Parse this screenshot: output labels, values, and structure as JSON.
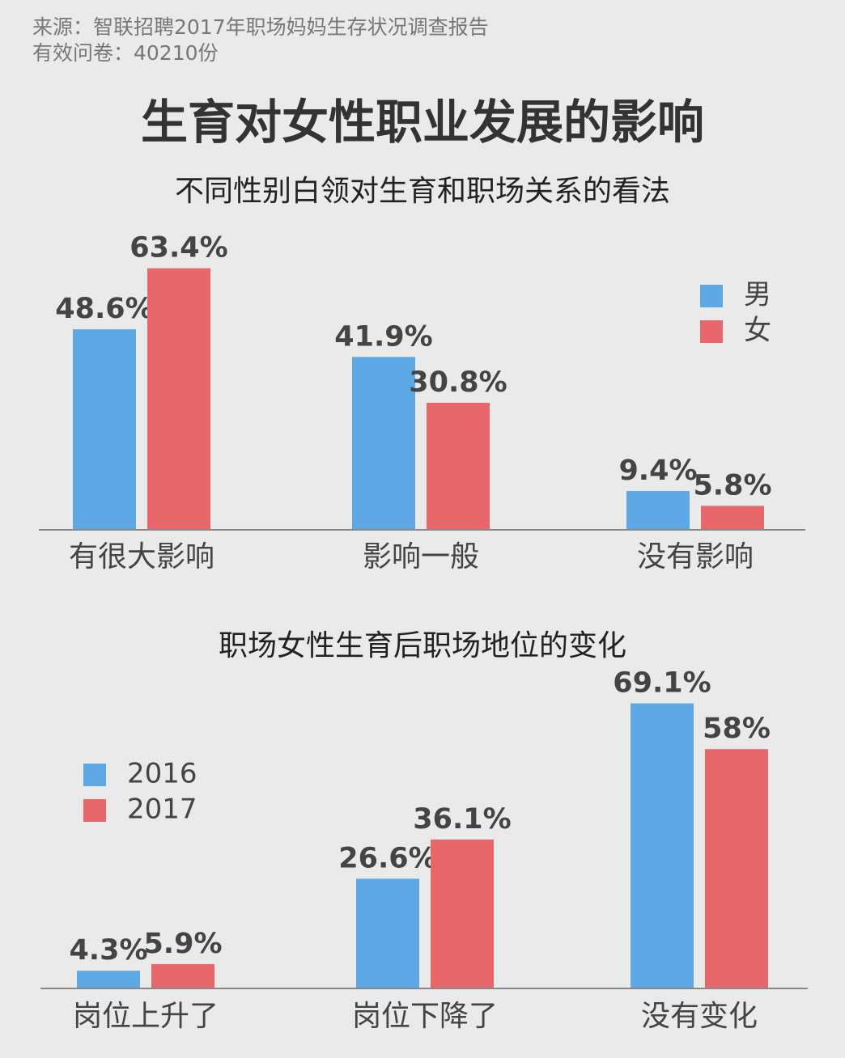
{
  "source": "来源：智联招聘2017年职场妈妈生存状况调查报告",
  "sample": "有效问卷：40210份",
  "title": "生育对女性职业发展的影响",
  "chart_data": [
    {
      "type": "bar",
      "title": "不同性别白领对生育和职场关系的看法",
      "categories": [
        "有很大影响",
        "影响一般",
        "没有影响"
      ],
      "series": [
        {
          "name": "男",
          "color": "#5ea8e6",
          "values": [
            48.6,
            41.9,
            9.4
          ],
          "value_labels": [
            "48.6%",
            "41.9%",
            "9.4%"
          ]
        },
        {
          "name": "女",
          "color": "#e8676b",
          "values": [
            63.4,
            30.8,
            5.8
          ],
          "value_labels": [
            "63.4%",
            "30.8%",
            "5.8%"
          ]
        }
      ],
      "legend": "upper right"
    },
    {
      "type": "bar",
      "title": "职场女性生育后职场地位的变化",
      "categories": [
        "岗位上升了",
        "岗位下降了",
        "没有变化"
      ],
      "series": [
        {
          "name": "2016",
          "color": "#5ea8e6",
          "values": [
            4.3,
            26.6,
            69.1
          ],
          "value_labels": [
            "4.3%",
            "26.6%",
            "69.1%"
          ]
        },
        {
          "name": "2017",
          "color": "#e8676b",
          "values": [
            5.9,
            36.1,
            58
          ],
          "value_labels": [
            "5.9%",
            "36.1%",
            "58%"
          ]
        }
      ],
      "legend": "upper left"
    }
  ]
}
